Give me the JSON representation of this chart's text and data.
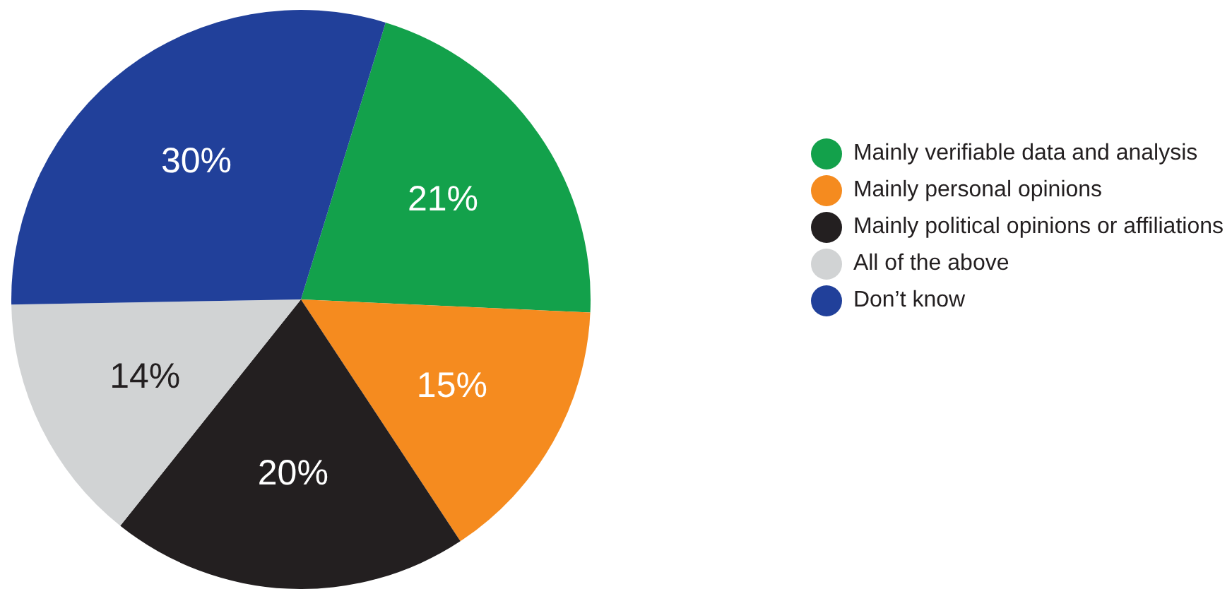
{
  "chart_data": {
    "type": "pie",
    "categories": [
      "Mainly verifiable data and analysis",
      "Mainly personal opinions",
      "Mainly political opinions or affiliations",
      "All of the above",
      "Don’t know"
    ],
    "values": [
      21,
      15,
      20,
      14,
      30
    ],
    "colors": [
      "#13a14b",
      "#f58b1f",
      "#231f20",
      "#d1d3d4",
      "#21409a"
    ],
    "value_labels": [
      "21%",
      "15%",
      "20%",
      "14%",
      "30%"
    ],
    "legend": "right"
  }
}
